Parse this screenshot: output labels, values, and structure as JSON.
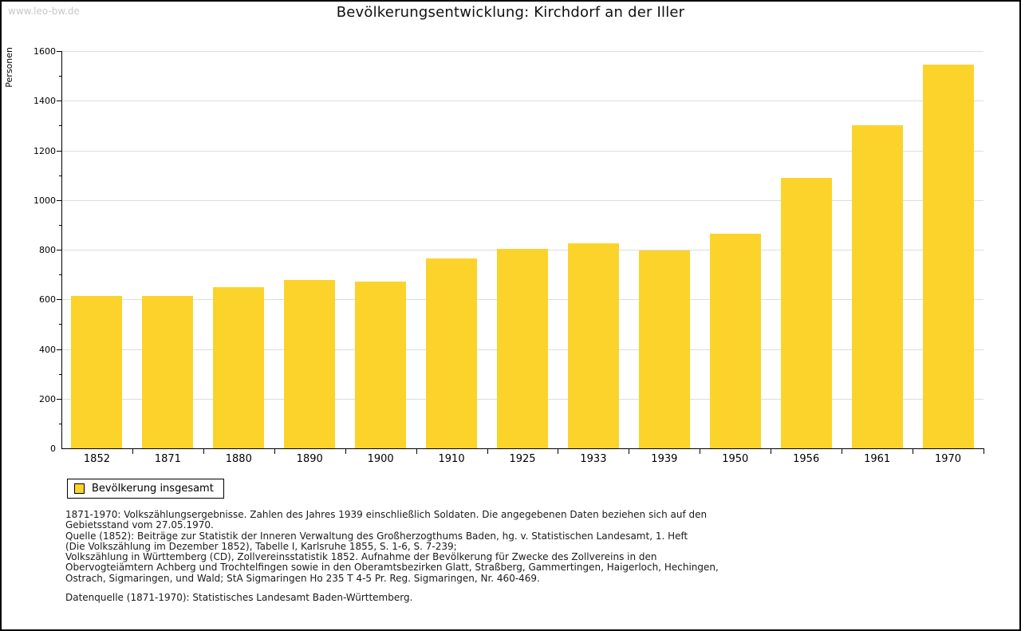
{
  "page": {
    "watermark": "www.leo-bw.de",
    "title": "Bevölkerungsentwicklung: Kirchdorf an der Iller"
  },
  "chart_data": {
    "type": "bar",
    "title": "Bevölkerungsentwicklung: Kirchdorf an der Iller",
    "ylabel": "Personen",
    "xlabel": "",
    "categories": [
      "1852",
      "1871",
      "1880",
      "1890",
      "1900",
      "1910",
      "1925",
      "1933",
      "1939",
      "1950",
      "1956",
      "1961",
      "1970"
    ],
    "values": [
      613,
      613,
      650,
      678,
      672,
      764,
      802,
      825,
      798,
      863,
      1090,
      1302,
      1544
    ],
    "ylim": [
      0,
      1600
    ],
    "ytick_step": 200,
    "ytick_minor_step": 100,
    "grid": "horizontal",
    "legend_position": "bottom-left",
    "legend_label": "Bevölkerung insgesamt"
  },
  "legend": {
    "label": "Bevölkerung insgesamt"
  },
  "footer": {
    "lines": [
      "1871-1970: Volkszählungsergebnisse. Zahlen des Jahres 1939 einschließlich Soldaten. Die angegebenen Daten beziehen sich auf den",
      "Gebietsstand vom 27.05.1970.",
      "Quelle (1852): Beiträge zur Statistik der Inneren Verwaltung des Großherzogthums Baden, hg. v. Statistischen Landesamt, 1. Heft",
      "(Die Volkszählung im Dezember 1852), Tabelle I, Karlsruhe 1855, S. 1-6, S. 7-239;",
      "Volkszählung in Württemberg (CD), Zollvereinsstatistik 1852. Aufnahme der Bevölkerung für Zwecke des Zollvereins in den",
      "Obervogteiämtern Achberg und Trochtelfingen sowie in den Oberamtsbezirken Glatt, Straßberg, Gammertingen, Haigerloch, Hechingen,",
      "Ostrach, Sigmaringen, und Wald; StA Sigmaringen Ho 235 T 4-5 Pr. Reg. Sigmaringen, Nr. 460-469."
    ],
    "datenquelle": "Datenquelle (1871-1970): Statistisches Landesamt Baden-Württemberg."
  },
  "colors": {
    "bar": "#FCD32B",
    "gridline": "#DDDDDD",
    "axis": "#000000",
    "watermark": "#C8C8C8",
    "background": "#FFFFFF"
  }
}
